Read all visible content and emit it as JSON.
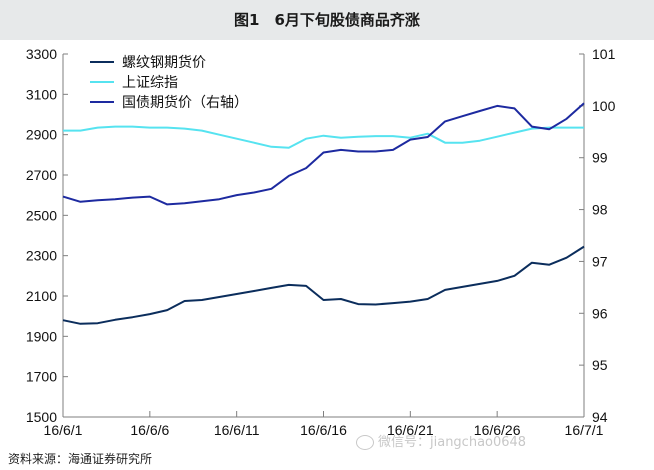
{
  "figure_title": "图1　6月下旬股债商品齐涨",
  "source": "资料来源：海通证券研究所",
  "watermark": "微信号：jiangchao0648",
  "colors": {
    "rebar": "#0b2d5c",
    "sse": "#56e3f0",
    "bond": "#1d2aa0",
    "axis": "#7f7f7f",
    "header_bg": "#e7e9ea"
  },
  "chart_data": {
    "type": "line",
    "title": "",
    "x_ticks": [
      "16/6/1",
      "16/6/6",
      "16/6/11",
      "16/6/16",
      "16/6/21",
      "16/6/26",
      "16/7/1"
    ],
    "x_range": [
      "2016-06-01",
      "2016-07-01"
    ],
    "y_left": {
      "range": [
        1500,
        3300
      ],
      "ticks": [
        1500,
        1700,
        1900,
        2100,
        2300,
        2500,
        2700,
        2900,
        3100,
        3300
      ]
    },
    "y_right": {
      "range": [
        94,
        101
      ],
      "ticks": [
        94,
        95,
        96,
        97,
        98,
        99,
        100,
        101
      ]
    },
    "legend_placement": "top-left",
    "grid": false,
    "series": [
      {
        "name": "螺纹钢期货价",
        "axis": "left",
        "color": "#0b2d5c",
        "points": [
          [
            "2016-06-01",
            1980
          ],
          [
            "2016-06-02",
            1962
          ],
          [
            "2016-06-03",
            1965
          ],
          [
            "2016-06-04",
            1982
          ],
          [
            "2016-06-05",
            1995
          ],
          [
            "2016-06-06",
            2010
          ],
          [
            "2016-06-07",
            2030
          ],
          [
            "2016-06-08",
            2075
          ],
          [
            "2016-06-09",
            2080
          ],
          [
            "2016-06-10",
            2095
          ],
          [
            "2016-06-11",
            2110
          ],
          [
            "2016-06-12",
            2125
          ],
          [
            "2016-06-13",
            2140
          ],
          [
            "2016-06-14",
            2155
          ],
          [
            "2016-06-15",
            2150
          ],
          [
            "2016-06-16",
            2080
          ],
          [
            "2016-06-17",
            2085
          ],
          [
            "2016-06-18",
            2060
          ],
          [
            "2016-06-19",
            2058
          ],
          [
            "2016-06-20",
            2065
          ],
          [
            "2016-06-21",
            2072
          ],
          [
            "2016-06-22",
            2085
          ],
          [
            "2016-06-23",
            2130
          ],
          [
            "2016-06-24",
            2145
          ],
          [
            "2016-06-25",
            2160
          ],
          [
            "2016-06-26",
            2175
          ],
          [
            "2016-06-27",
            2200
          ],
          [
            "2016-06-28",
            2265
          ],
          [
            "2016-06-29",
            2255
          ],
          [
            "2016-06-30",
            2290
          ],
          [
            "2016-07-01",
            2345
          ]
        ]
      },
      {
        "name": "上证综指",
        "axis": "left",
        "color": "#56e3f0",
        "points": [
          [
            "2016-06-01",
            2920
          ],
          [
            "2016-06-02",
            2920
          ],
          [
            "2016-06-03",
            2935
          ],
          [
            "2016-06-04",
            2940
          ],
          [
            "2016-06-05",
            2940
          ],
          [
            "2016-06-06",
            2935
          ],
          [
            "2016-06-07",
            2935
          ],
          [
            "2016-06-08",
            2930
          ],
          [
            "2016-06-09",
            2920
          ],
          [
            "2016-06-10",
            2900
          ],
          [
            "2016-06-11",
            2880
          ],
          [
            "2016-06-12",
            2860
          ],
          [
            "2016-06-13",
            2840
          ],
          [
            "2016-06-14",
            2835
          ],
          [
            "2016-06-15",
            2880
          ],
          [
            "2016-06-16",
            2895
          ],
          [
            "2016-06-17",
            2885
          ],
          [
            "2016-06-18",
            2890
          ],
          [
            "2016-06-19",
            2893
          ],
          [
            "2016-06-20",
            2893
          ],
          [
            "2016-06-21",
            2885
          ],
          [
            "2016-06-22",
            2905
          ],
          [
            "2016-06-23",
            2860
          ],
          [
            "2016-06-24",
            2860
          ],
          [
            "2016-06-25",
            2870
          ],
          [
            "2016-06-26",
            2890
          ],
          [
            "2016-06-27",
            2910
          ],
          [
            "2016-06-28",
            2930
          ],
          [
            "2016-06-29",
            2935
          ],
          [
            "2016-06-30",
            2935
          ],
          [
            "2016-07-01",
            2935
          ]
        ]
      },
      {
        "name": "国债期货价（右轴）",
        "axis": "right",
        "color": "#1d2aa0",
        "points": [
          [
            "2016-06-01",
            98.25
          ],
          [
            "2016-06-02",
            98.15
          ],
          [
            "2016-06-03",
            98.18
          ],
          [
            "2016-06-04",
            98.2
          ],
          [
            "2016-06-05",
            98.23
          ],
          [
            "2016-06-06",
            98.25
          ],
          [
            "2016-06-07",
            98.1
          ],
          [
            "2016-06-08",
            98.12
          ],
          [
            "2016-06-09",
            98.16
          ],
          [
            "2016-06-10",
            98.2
          ],
          [
            "2016-06-11",
            98.28
          ],
          [
            "2016-06-12",
            98.33
          ],
          [
            "2016-06-13",
            98.4
          ],
          [
            "2016-06-14",
            98.65
          ],
          [
            "2016-06-15",
            98.8
          ],
          [
            "2016-06-16",
            99.1
          ],
          [
            "2016-06-17",
            99.15
          ],
          [
            "2016-06-18",
            99.12
          ],
          [
            "2016-06-19",
            99.12
          ],
          [
            "2016-06-20",
            99.15
          ],
          [
            "2016-06-21",
            99.35
          ],
          [
            "2016-06-22",
            99.4
          ],
          [
            "2016-06-23",
            99.7
          ],
          [
            "2016-06-24",
            99.8
          ],
          [
            "2016-06-25",
            99.9
          ],
          [
            "2016-06-26",
            100.0
          ],
          [
            "2016-06-27",
            99.95
          ],
          [
            "2016-06-28",
            99.6
          ],
          [
            "2016-06-29",
            99.55
          ],
          [
            "2016-06-30",
            99.75
          ],
          [
            "2016-07-01",
            100.05
          ]
        ]
      }
    ]
  }
}
